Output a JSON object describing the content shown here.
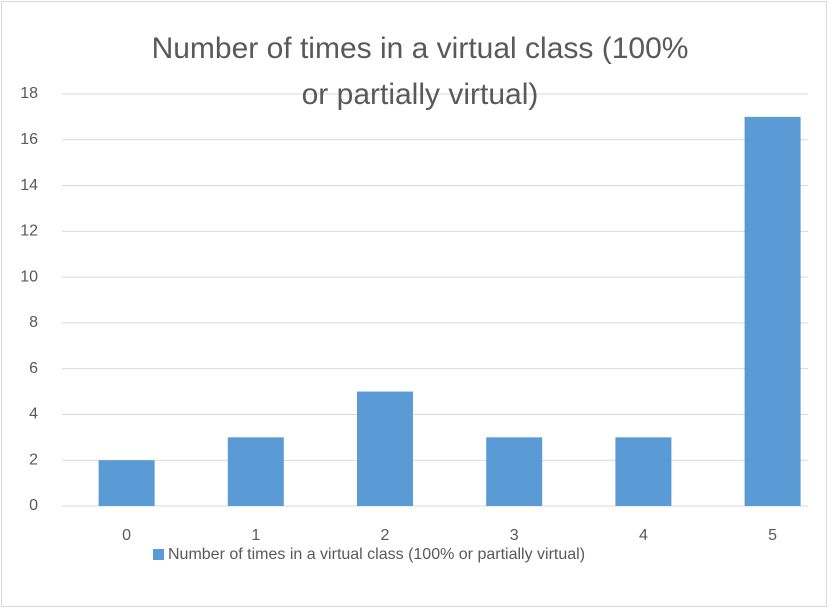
{
  "chart_data": {
    "type": "bar",
    "title": "Number of times in a virtual class (100% or partially virtual)",
    "categories": [
      "0",
      "1",
      "2",
      "3",
      "4",
      "5"
    ],
    "series": [
      {
        "name": "Number of times in a virtual class (100% or partially virtual)",
        "color": "#5b9bd5",
        "values": [
          2,
          3,
          5,
          3,
          3,
          17
        ]
      }
    ],
    "ylim": [
      0,
      18
    ],
    "yticks": [
      0,
      2,
      4,
      6,
      8,
      10,
      12,
      14,
      16,
      18
    ],
    "grid": true,
    "legend": "bottom"
  }
}
